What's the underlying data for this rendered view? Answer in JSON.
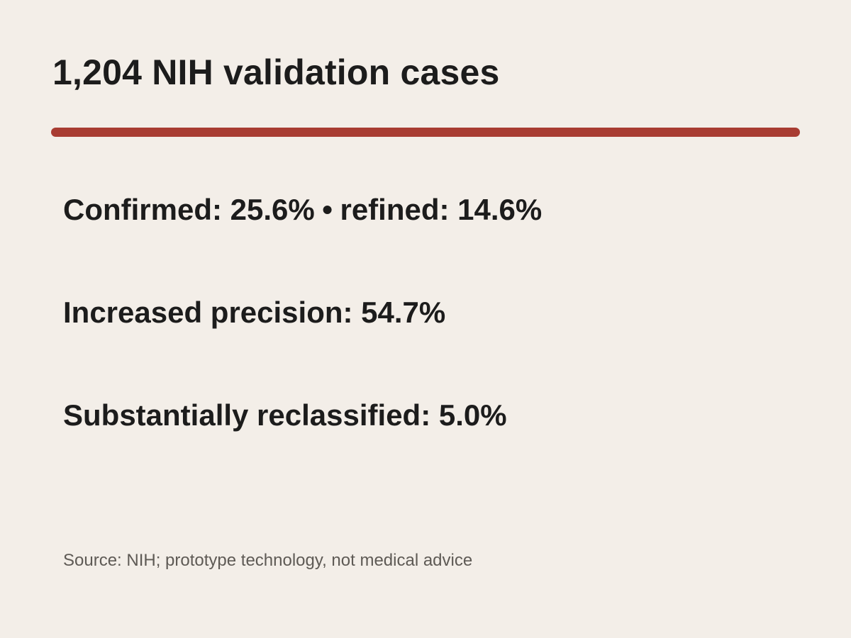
{
  "title": "1,204 NIH validation cases",
  "divider_color": "#a83c32",
  "stats": {
    "confirmed": "Confirmed: 25.6%",
    "separator": "•",
    "refined": "refined: 14.6%",
    "increased_precision": "Increased precision: 54.7%",
    "substantially_reclassified": "Substantially reclassified: 5.0%"
  },
  "source": "Source: NIH; prototype technology, not medical advice"
}
